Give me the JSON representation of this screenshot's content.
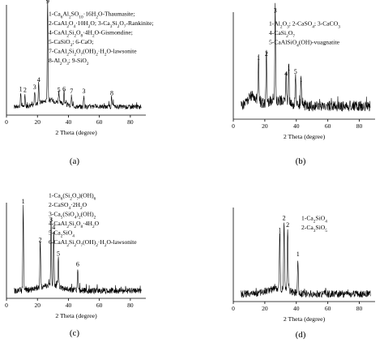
{
  "chart_data": [
    {
      "type": "line",
      "panel_label": "(a)",
      "xlabel": "2 Theta (degree)",
      "ylabel": "",
      "xlim": [
        0,
        90
      ],
      "xticks": [
        0,
        20,
        40,
        60,
        80
      ],
      "yticks_shown": false,
      "legend": [
        "1-Ca₆Al₂SO₁₀·16H₂O-Thaumasite;",
        "2-CaAl₂O₄·10H₂O; 3-Ca₃Si₂O₇-Rankinite;",
        "4-CaAl₂Si₂O₈·4H₂O-Gismondine;",
        "5-CaSiO₃; 6-CaO;",
        "7-CaAl₂Si₂O₇(OH)₂·H₂O-lawsonite",
        "8-Al₂O₃; 9-SiO₂"
      ],
      "peaks": [
        {
          "label": "1",
          "x": 9.2,
          "rel_height": 0.12
        },
        {
          "label": "2",
          "x": 12.0,
          "rel_height": 0.11
        },
        {
          "label": "3",
          "x": 18.2,
          "rel_height": 0.14
        },
        {
          "label": "4",
          "x": 20.8,
          "rel_height": 0.21
        },
        {
          "label": "9",
          "x": 26.6,
          "rel_height": 0.98
        },
        {
          "label": "5",
          "x": 33.8,
          "rel_height": 0.11
        },
        {
          "label": "6",
          "x": 37.2,
          "rel_height": 0.12
        },
        {
          "label": "7",
          "x": 42.0,
          "rel_height": 0.1
        },
        {
          "label": "3",
          "x": 50.0,
          "rel_height": 0.1
        },
        {
          "label": "8",
          "x": 68.0,
          "rel_height": 0.08
        }
      ]
    },
    {
      "type": "line",
      "panel_label": "(b)",
      "xlabel": "2 Theta (degree)",
      "ylabel": "",
      "xlim": [
        0,
        90
      ],
      "xticks": [
        0,
        20,
        40,
        60,
        80
      ],
      "yticks_shown": false,
      "legend": [
        "1-Al₂O₃; 2-CaSO₄; 3-CaCO₃",
        "4-CaSi₂O₇",
        "5-CaAlSiO₄(OH)-vuagnatite"
      ],
      "peaks": [
        {
          "label": "1",
          "x": 16.0,
          "rel_height": 0.48
        },
        {
          "label": "2",
          "x": 21.0,
          "rel_height": 0.52
        },
        {
          "label": "3",
          "x": 26.6,
          "rel_height": 0.96
        },
        {
          "label": "4",
          "x": 33.5,
          "rel_height": 0.32
        },
        {
          "label": "1",
          "x": 35.2,
          "rel_height": 0.38
        },
        {
          "label": "5",
          "x": 39.5,
          "rel_height": 0.34
        },
        {
          "label": "1",
          "x": 43.0,
          "rel_height": 0.26
        }
      ]
    },
    {
      "type": "line",
      "panel_label": "(c)",
      "xlabel": "2 Theta (degree)",
      "ylabel": "",
      "xlim": [
        0,
        90
      ],
      "xticks": [
        0,
        20,
        40,
        60,
        80
      ],
      "yticks_shown": false,
      "legend": [
        "1-Ca₆(Si₂O₇)(OH)₆",
        "2-CaSO₄·2H₂O",
        "3-Ca₅(SiO₄)₂(OH)₂",
        "4-CaAl₂Si₂O₈·4H₂O",
        "5-Ca₂SiO₄",
        "6-CaAl₂Si₂O₇(OH)₂·H₂O-lawsonite"
      ],
      "peaks": [
        {
          "label": "1",
          "x": 10.8,
          "rel_height": 0.96
        },
        {
          "label": "2",
          "x": 21.8,
          "rel_height": 0.52
        },
        {
          "label": "3",
          "x": 28.8,
          "rel_height": 0.75
        },
        {
          "label": "4",
          "x": 30.5,
          "rel_height": 0.66
        },
        {
          "label": "5",
          "x": 33.5,
          "rel_height": 0.36
        },
        {
          "label": "6",
          "x": 46.0,
          "rel_height": 0.24
        }
      ]
    },
    {
      "type": "line",
      "panel_label": "(d)",
      "xlabel": "2 Theta (degree)",
      "ylabel": "",
      "xlim": [
        0,
        90
      ],
      "xticks": [
        0,
        20,
        40,
        60,
        80
      ],
      "yticks_shown": false,
      "legend": [
        "1-Ca₂SiO₄",
        "2-Ca₃SiO₅"
      ],
      "peaks": [
        {
          "label": "1",
          "x": 29.5,
          "rel_height": 0.68
        },
        {
          "label": "2",
          "x": 32.2,
          "rel_height": 0.82
        },
        {
          "label": "2",
          "x": 34.5,
          "rel_height": 0.74
        },
        {
          "label": "1",
          "x": 41.0,
          "rel_height": 0.4
        }
      ]
    }
  ]
}
